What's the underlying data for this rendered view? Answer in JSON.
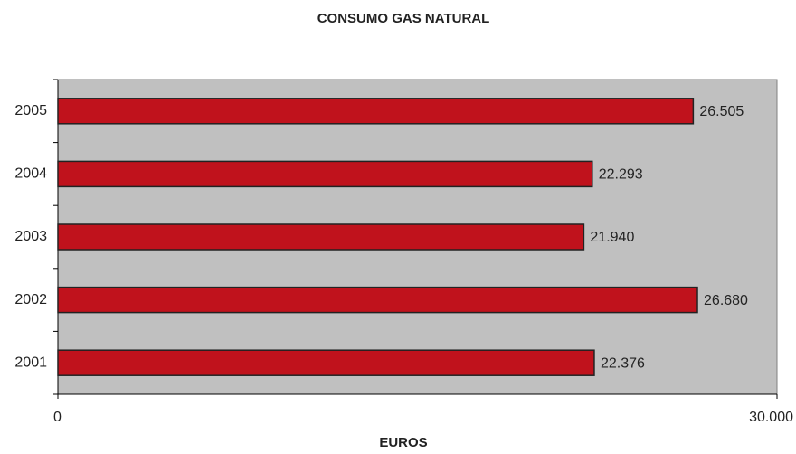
{
  "chart_data": {
    "type": "bar",
    "orientation": "horizontal",
    "title": "CONSUMO GAS NATURAL",
    "x_label": "EUROS",
    "categories": [
      "2005",
      "2004",
      "2003",
      "2002",
      "2001"
    ],
    "values": [
      26505,
      22293,
      21940,
      26680,
      22376
    ],
    "value_labels": [
      "26.505",
      "22.293",
      "21.940",
      "26.680",
      "22.376"
    ],
    "color": "#c0121c",
    "background": "#c0c0c0",
    "xlim": [
      0,
      30000
    ],
    "xticks": [
      0,
      {
        "value": 30000,
        "label": "30.000"
      }
    ]
  }
}
